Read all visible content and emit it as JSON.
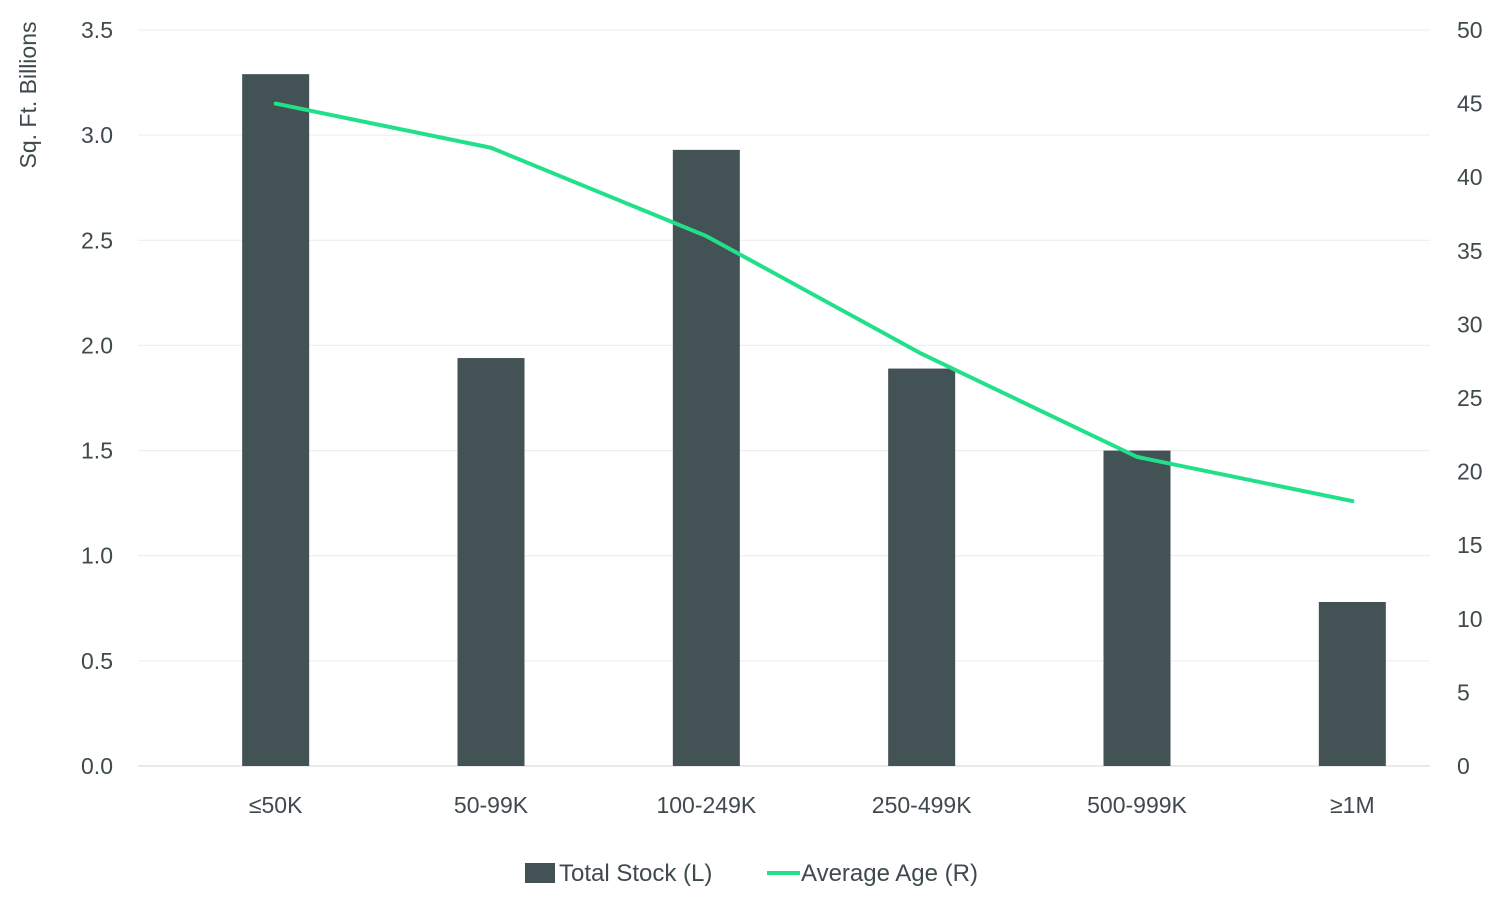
{
  "chart_data": {
    "type": "bar",
    "categories": [
      "≤50K",
      "50-99K",
      "100-249K",
      "250-499K",
      "500-999K",
      "≥1M"
    ],
    "series": [
      {
        "name": "Total Stock (L)",
        "type": "bar",
        "axis": "left",
        "color": "#435254",
        "values": [
          3.29,
          1.94,
          2.93,
          1.89,
          1.5,
          0.78
        ]
      },
      {
        "name": "Average Age (R)",
        "type": "line",
        "axis": "right",
        "color": "#22e08a",
        "values": [
          45,
          42,
          36,
          28,
          21,
          18
        ]
      }
    ],
    "ylabel": "Sq. Ft. Billions",
    "ylim": [
      0,
      3.5
    ],
    "y_ticks": [
      "0.0",
      "0.5",
      "1.0",
      "1.5",
      "2.0",
      "2.5",
      "3.0",
      "3.5"
    ],
    "y2lim": [
      0,
      50
    ],
    "y2_ticks": [
      "0",
      "5",
      "10",
      "15",
      "20",
      "25",
      "30",
      "35",
      "40",
      "45",
      "50"
    ],
    "grid": true,
    "legend_position": "bottom"
  }
}
